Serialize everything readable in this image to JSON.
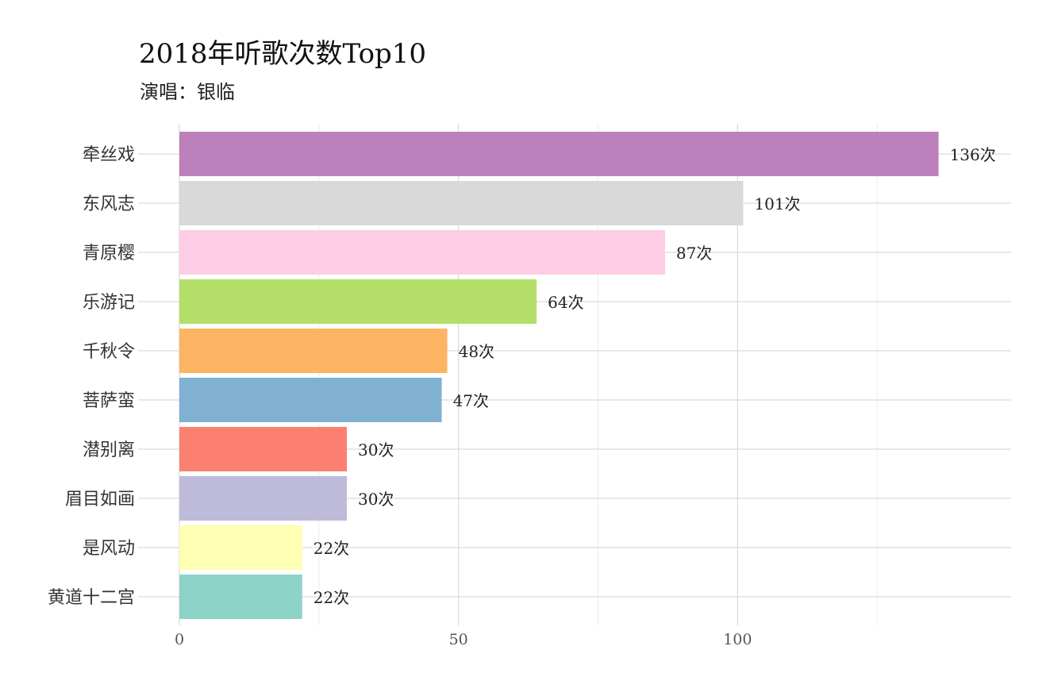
{
  "chart_data": {
    "type": "bar",
    "orientation": "horizontal",
    "title": "2018年听歌次数Top10",
    "subtitle": "演唱：银临",
    "xlabel": "",
    "ylabel": "",
    "xlim": [
      0,
      149
    ],
    "x_ticks": [
      0,
      50,
      100
    ],
    "grid": true,
    "legend": "none",
    "categories": [
      "牵丝戏",
      "东风志",
      "青原樱",
      "乐游记",
      "千秋令",
      "菩萨蛮",
      "潜别离",
      "眉目如画",
      "是风动",
      "黄道十二宫"
    ],
    "values": [
      136,
      101,
      87,
      64,
      48,
      47,
      30,
      30,
      22,
      22
    ],
    "data_labels": [
      "136次",
      "101次",
      "87次",
      "64次",
      "48次",
      "47次",
      "30次",
      "30次",
      "22次",
      "22次"
    ],
    "colors": [
      "#BC80BD",
      "#D9D9D9",
      "#FCCDE5",
      "#B3DE69",
      "#FDB462",
      "#80B1D3",
      "#FB8072",
      "#BEBADA",
      "#FFFFB3",
      "#8DD3C7"
    ]
  }
}
